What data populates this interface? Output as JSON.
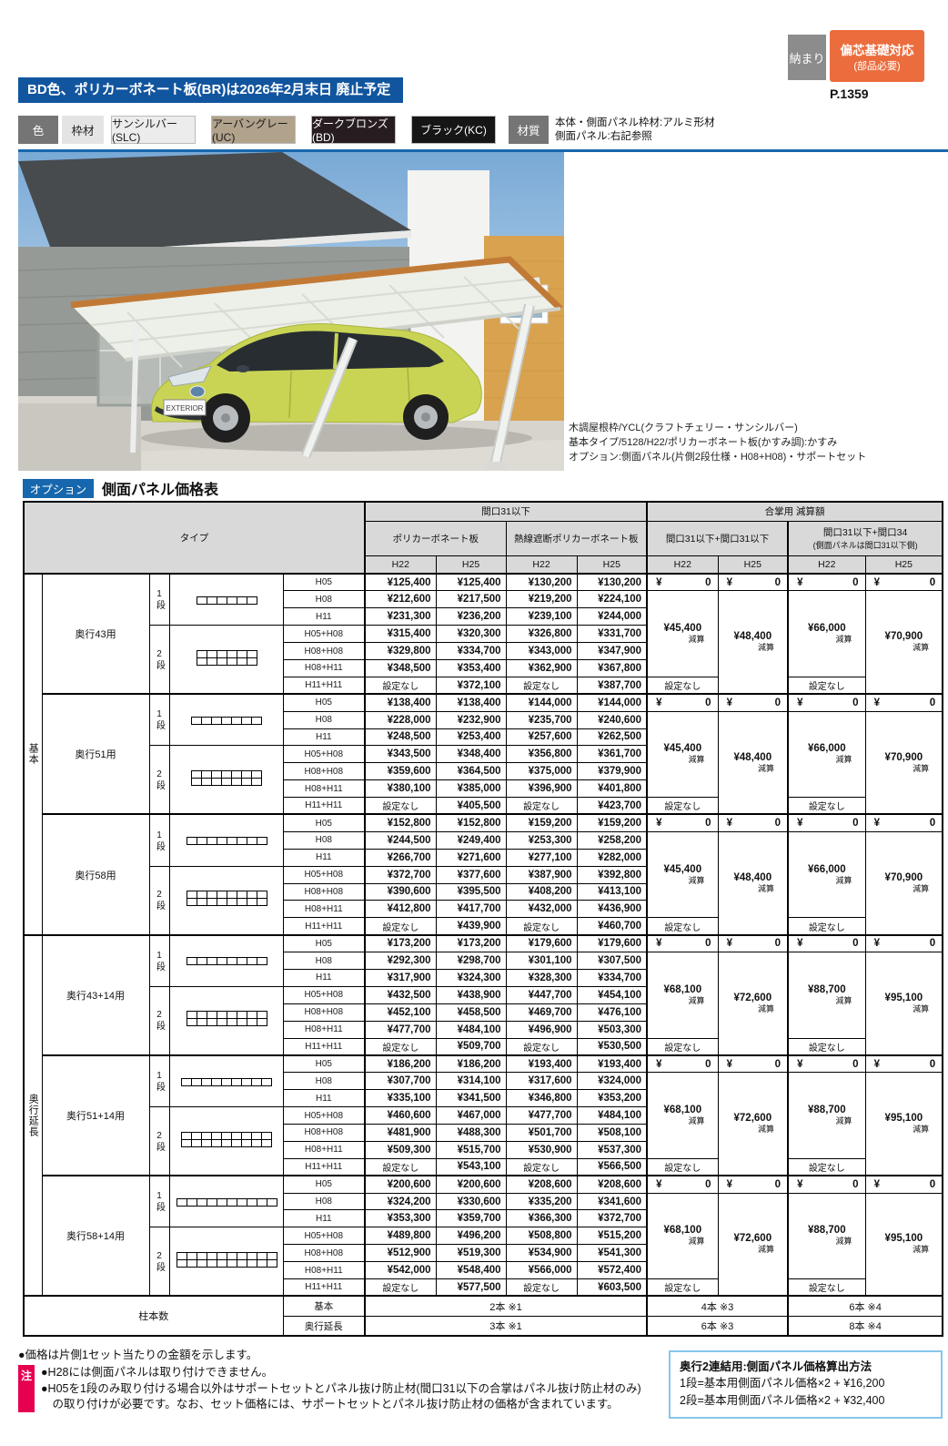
{
  "header": {
    "badge_osamari": "納まり",
    "badge_eccentric_line1": "偏芯基礎対応",
    "badge_eccentric_line2": "(部品必要)",
    "page_ref": "P.1359",
    "notice": "BD色、ポリカーボネート板(BR)は2026年2月末日 廃止予定"
  },
  "spec_bar": {
    "color_label": "色",
    "frame_label": "枠材",
    "colors": [
      {
        "name": "サンシルバー(SLC)",
        "bg": "#ececec",
        "fg": "#1a1a1a"
      },
      {
        "name": "アーバングレー(UC)",
        "bg": "#b1a28c",
        "fg": "#1a1a1a"
      },
      {
        "name": "ダークブロンズ(BD)",
        "bg": "#271d21",
        "fg": "#ffffff"
      },
      {
        "name": "ブラック(KC)",
        "bg": "#161616",
        "fg": "#ffffff"
      }
    ],
    "material_label": "材質",
    "material_lines": [
      "本体・側面パネル枠材:アルミ形材",
      "側面パネル:右記参照"
    ]
  },
  "photo": {
    "caption_lines": [
      "木調屋根枠/YCL(クラフトチェリー・サンシルバー)",
      "基本タイプ/5128/H22/ポリカーボネート板(かすみ調):かすみ",
      "オプション:側面パネル(片側2段仕様・H08+H08)・サポートセット"
    ],
    "plate_text": "EXTERIOR"
  },
  "section": {
    "badge": "オプション",
    "title": "側面パネル価格表"
  },
  "price_table": {
    "type_header": "タイプ",
    "group_headers": [
      "間口31以下",
      "合掌用 減算額"
    ],
    "sub_headers": [
      "ポリカーボネート板",
      "熱線遮断ポリカーボネート板",
      "間口31以下+間口31以下"
    ],
    "sub_header4_line1": "間口31以下+間口34",
    "sub_header4_line2": "(側面パネルは間口31以下側)",
    "size_headers": [
      "H22",
      "H25",
      "H22",
      "H25",
      "H22",
      "H25",
      "H22",
      "H25"
    ],
    "none_label": "設定なし",
    "zero_yen": "¥",
    "zero_val": "0",
    "deduction_suffix": "減算",
    "groups": [
      {
        "label": "基本",
        "blocks": [
          {
            "depth": "奥行43用",
            "panels": 6,
            "tiers": [
              {
                "label": "1段",
                "rows": [
                  {
                    "size": "H05",
                    "p": [
                      "¥125,400",
                      "¥125,400",
                      "¥130,200",
                      "¥130,200"
                    ]
                  },
                  {
                    "size": "H08",
                    "p": [
                      "¥212,600",
                      "¥217,500",
                      "¥219,200",
                      "¥224,100"
                    ]
                  },
                  {
                    "size": "H11",
                    "p": [
                      "¥231,300",
                      "¥236,200",
                      "¥239,100",
                      "¥244,000"
                    ]
                  }
                ]
              },
              {
                "label": "2段",
                "rows": [
                  {
                    "size": "H05+H08",
                    "p": [
                      "¥315,400",
                      "¥320,300",
                      "¥326,800",
                      "¥331,700"
                    ]
                  },
                  {
                    "size": "H08+H08",
                    "p": [
                      "¥329,800",
                      "¥334,700",
                      "¥343,000",
                      "¥347,900"
                    ]
                  },
                  {
                    "size": "H08+H11",
                    "p": [
                      "¥348,500",
                      "¥353,400",
                      "¥362,900",
                      "¥367,800"
                    ]
                  },
                  {
                    "size": "H11+H11",
                    "p": [
                      "設定なし",
                      "¥372,100",
                      "設定なし",
                      "¥387,700"
                    ]
                  }
                ]
              }
            ],
            "deductions": [
              "¥45,400",
              "¥48,400",
              "¥66,000",
              "¥70,900"
            ]
          },
          {
            "depth": "奥行51用",
            "panels": 7,
            "tiers": [
              {
                "label": "1段",
                "rows": [
                  {
                    "size": "H05",
                    "p": [
                      "¥138,400",
                      "¥138,400",
                      "¥144,000",
                      "¥144,000"
                    ]
                  },
                  {
                    "size": "H08",
                    "p": [
                      "¥228,000",
                      "¥232,900",
                      "¥235,700",
                      "¥240,600"
                    ]
                  },
                  {
                    "size": "H11",
                    "p": [
                      "¥248,500",
                      "¥253,400",
                      "¥257,600",
                      "¥262,500"
                    ]
                  }
                ]
              },
              {
                "label": "2段",
                "rows": [
                  {
                    "size": "H05+H08",
                    "p": [
                      "¥343,500",
                      "¥348,400",
                      "¥356,800",
                      "¥361,700"
                    ]
                  },
                  {
                    "size": "H08+H08",
                    "p": [
                      "¥359,600",
                      "¥364,500",
                      "¥375,000",
                      "¥379,900"
                    ]
                  },
                  {
                    "size": "H08+H11",
                    "p": [
                      "¥380,100",
                      "¥385,000",
                      "¥396,900",
                      "¥401,800"
                    ]
                  },
                  {
                    "size": "H11+H11",
                    "p": [
                      "設定なし",
                      "¥405,500",
                      "設定なし",
                      "¥423,700"
                    ]
                  }
                ]
              }
            ],
            "deductions": [
              "¥45,400",
              "¥48,400",
              "¥66,000",
              "¥70,900"
            ]
          },
          {
            "depth": "奥行58用",
            "panels": 8,
            "tiers": [
              {
                "label": "1段",
                "rows": [
                  {
                    "size": "H05",
                    "p": [
                      "¥152,800",
                      "¥152,800",
                      "¥159,200",
                      "¥159,200"
                    ]
                  },
                  {
                    "size": "H08",
                    "p": [
                      "¥244,500",
                      "¥249,400",
                      "¥253,300",
                      "¥258,200"
                    ]
                  },
                  {
                    "size": "H11",
                    "p": [
                      "¥266,700",
                      "¥271,600",
                      "¥277,100",
                      "¥282,000"
                    ]
                  }
                ]
              },
              {
                "label": "2段",
                "rows": [
                  {
                    "size": "H05+H08",
                    "p": [
                      "¥372,700",
                      "¥377,600",
                      "¥387,900",
                      "¥392,800"
                    ]
                  },
                  {
                    "size": "H08+H08",
                    "p": [
                      "¥390,600",
                      "¥395,500",
                      "¥408,200",
                      "¥413,100"
                    ]
                  },
                  {
                    "size": "H08+H11",
                    "p": [
                      "¥412,800",
                      "¥417,700",
                      "¥432,000",
                      "¥436,900"
                    ]
                  },
                  {
                    "size": "H11+H11",
                    "p": [
                      "設定なし",
                      "¥439,900",
                      "設定なし",
                      "¥460,700"
                    ]
                  }
                ]
              }
            ],
            "deductions": [
              "¥45,400",
              "¥48,400",
              "¥66,000",
              "¥70,900"
            ]
          }
        ]
      },
      {
        "label": "奥行延長",
        "blocks": [
          {
            "depth": "奥行43+14用",
            "panels": 8,
            "tiers": [
              {
                "label": "1段",
                "rows": [
                  {
                    "size": "H05",
                    "p": [
                      "¥173,200",
                      "¥173,200",
                      "¥179,600",
                      "¥179,600"
                    ]
                  },
                  {
                    "size": "H08",
                    "p": [
                      "¥292,300",
                      "¥298,700",
                      "¥301,100",
                      "¥307,500"
                    ]
                  },
                  {
                    "size": "H11",
                    "p": [
                      "¥317,900",
                      "¥324,300",
                      "¥328,300",
                      "¥334,700"
                    ]
                  }
                ]
              },
              {
                "label": "2段",
                "rows": [
                  {
                    "size": "H05+H08",
                    "p": [
                      "¥432,500",
                      "¥438,900",
                      "¥447,700",
                      "¥454,100"
                    ]
                  },
                  {
                    "size": "H08+H08",
                    "p": [
                      "¥452,100",
                      "¥458,500",
                      "¥469,700",
                      "¥476,100"
                    ]
                  },
                  {
                    "size": "H08+H11",
                    "p": [
                      "¥477,700",
                      "¥484,100",
                      "¥496,900",
                      "¥503,300"
                    ]
                  },
                  {
                    "size": "H11+H11",
                    "p": [
                      "設定なし",
                      "¥509,700",
                      "設定なし",
                      "¥530,500"
                    ]
                  }
                ]
              }
            ],
            "deductions": [
              "¥68,100",
              "¥72,600",
              "¥88,700",
              "¥95,100"
            ]
          },
          {
            "depth": "奥行51+14用",
            "panels": 9,
            "tiers": [
              {
                "label": "1段",
                "rows": [
                  {
                    "size": "H05",
                    "p": [
                      "¥186,200",
                      "¥186,200",
                      "¥193,400",
                      "¥193,400"
                    ]
                  },
                  {
                    "size": "H08",
                    "p": [
                      "¥307,700",
                      "¥314,100",
                      "¥317,600",
                      "¥324,000"
                    ]
                  },
                  {
                    "size": "H11",
                    "p": [
                      "¥335,100",
                      "¥341,500",
                      "¥346,800",
                      "¥353,200"
                    ]
                  }
                ]
              },
              {
                "label": "2段",
                "rows": [
                  {
                    "size": "H05+H08",
                    "p": [
                      "¥460,600",
                      "¥467,000",
                      "¥477,700",
                      "¥484,100"
                    ]
                  },
                  {
                    "size": "H08+H08",
                    "p": [
                      "¥481,900",
                      "¥488,300",
                      "¥501,700",
                      "¥508,100"
                    ]
                  },
                  {
                    "size": "H08+H11",
                    "p": [
                      "¥509,300",
                      "¥515,700",
                      "¥530,900",
                      "¥537,300"
                    ]
                  },
                  {
                    "size": "H11+H11",
                    "p": [
                      "設定なし",
                      "¥543,100",
                      "設定なし",
                      "¥566,500"
                    ]
                  }
                ]
              }
            ],
            "deductions": [
              "¥68,100",
              "¥72,600",
              "¥88,700",
              "¥95,100"
            ]
          },
          {
            "depth": "奥行58+14用",
            "panels": 10,
            "tiers": [
              {
                "label": "1段",
                "rows": [
                  {
                    "size": "H05",
                    "p": [
                      "¥200,600",
                      "¥200,600",
                      "¥208,600",
                      "¥208,600"
                    ]
                  },
                  {
                    "size": "H08",
                    "p": [
                      "¥324,200",
                      "¥330,600",
                      "¥335,200",
                      "¥341,600"
                    ]
                  },
                  {
                    "size": "H11",
                    "p": [
                      "¥353,300",
                      "¥359,700",
                      "¥366,300",
                      "¥372,700"
                    ]
                  }
                ]
              },
              {
                "label": "2段",
                "rows": [
                  {
                    "size": "H05+H08",
                    "p": [
                      "¥489,800",
                      "¥496,200",
                      "¥508,800",
                      "¥515,200"
                    ]
                  },
                  {
                    "size": "H08+H08",
                    "p": [
                      "¥512,900",
                      "¥519,300",
                      "¥534,900",
                      "¥541,300"
                    ]
                  },
                  {
                    "size": "H08+H11",
                    "p": [
                      "¥542,000",
                      "¥548,400",
                      "¥566,000",
                      "¥572,400"
                    ]
                  },
                  {
                    "size": "H11+H11",
                    "p": [
                      "設定なし",
                      "¥577,500",
                      "設定なし",
                      "¥603,500"
                    ]
                  }
                ]
              }
            ],
            "deductions": [
              "¥68,100",
              "¥72,600",
              "¥88,700",
              "¥95,100"
            ]
          }
        ]
      }
    ],
    "pillar": {
      "label": "柱本数",
      "rows": [
        {
          "name": "基本",
          "base": "2本 ※1",
          "gassho": "4本 ※3",
          "m34": "6本 ※4"
        },
        {
          "name": "奥行延長",
          "base": "3本 ※1",
          "gassho": "6本 ※3",
          "m34": "8本 ※4"
        }
      ]
    }
  },
  "notes": {
    "note0": "●価格は片側1セット当たりの金額を示します。",
    "badge": "注",
    "lines": [
      "●H28には側面パネルは取り付けできません。",
      "●H05を1段のみ取り付ける場合以外はサポートセットとパネル抜け防止材(間口31以下の合掌はパネル抜け防止材のみ)",
      "　の取り付けが必要です。なお、セット価格には、サポートセットとパネル抜け防止材の価格が含まれています。"
    ]
  },
  "calc_box": {
    "title": "奥行2連結用:側面パネル価格算出方法",
    "line1": "1段=基本用側面パネル価格×2 + ¥16,200",
    "line2": "2段=基本用側面パネル価格×2 + ¥32,400"
  }
}
